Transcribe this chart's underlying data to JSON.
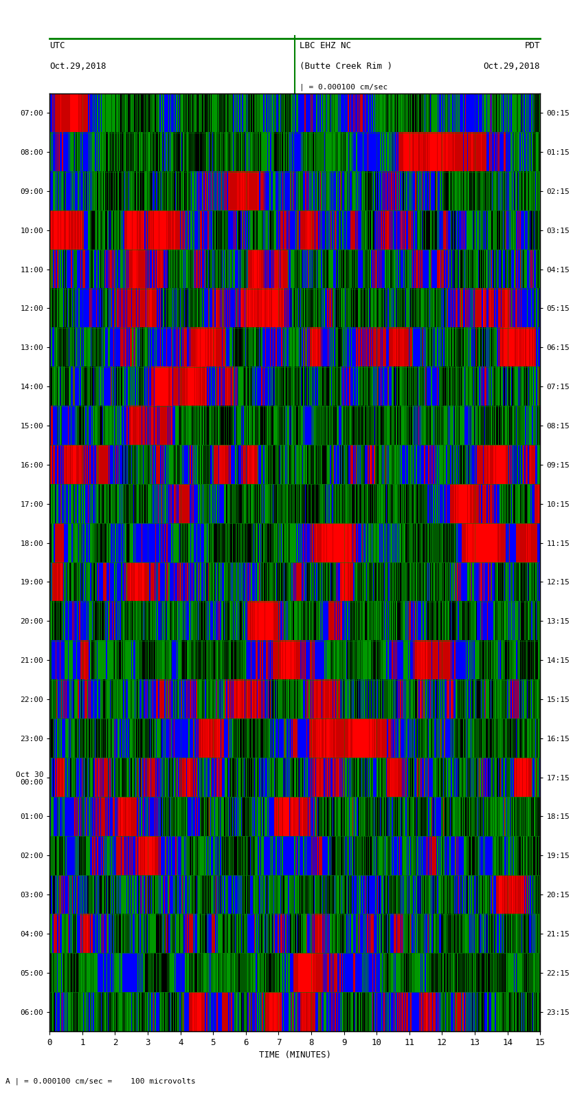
{
  "title_station": "LBC EHZ NC",
  "title_location": "(Butte Creek Rim )",
  "title_scale": "| = 0.000100 cm/sec",
  "left_header1": "UTC",
  "left_header2": "Oct.29,2018",
  "right_header1": "PDT",
  "right_header2": "Oct.29,2018",
  "scale_note": "A | = 0.000100 cm/sec =    100 microvolts",
  "xlabel": "TIME (MINUTES)",
  "utc_labels": [
    "07:00",
    "08:00",
    "09:00",
    "10:00",
    "11:00",
    "12:00",
    "13:00",
    "14:00",
    "15:00",
    "16:00",
    "17:00",
    "18:00",
    "19:00",
    "20:00",
    "21:00",
    "22:00",
    "23:00",
    "Oct 30\n00:00",
    "01:00",
    "02:00",
    "03:00",
    "04:00",
    "05:00",
    "06:00"
  ],
  "pdt_labels": [
    "00:15",
    "01:15",
    "02:15",
    "03:15",
    "04:15",
    "05:15",
    "06:15",
    "07:15",
    "08:15",
    "09:15",
    "10:15",
    "11:15",
    "12:15",
    "13:15",
    "14:15",
    "15:15",
    "16:15",
    "17:15",
    "18:15",
    "19:15",
    "20:15",
    "21:15",
    "22:15",
    "23:15"
  ],
  "n_rows": 24,
  "n_minutes": 15,
  "bg_color": "#000000",
  "fig_bg": "#ffffff",
  "header_line_color": "#008000",
  "grid_line_color": "#008000",
  "seed": 42
}
